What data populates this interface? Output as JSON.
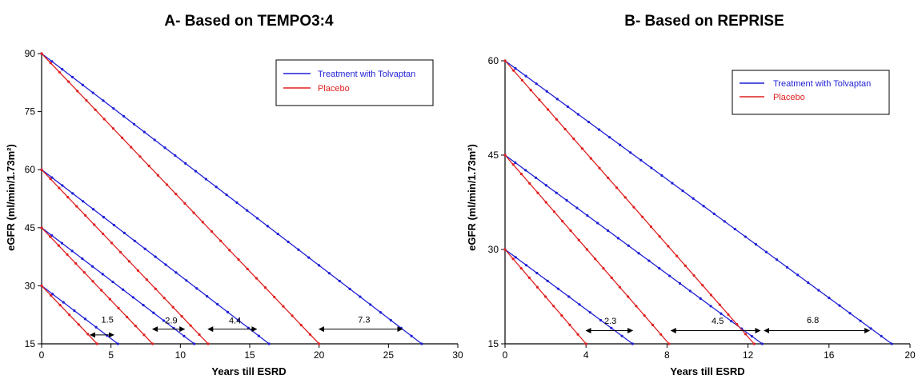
{
  "chart_data": [
    {
      "type": "line",
      "title": "A- Based on TEMPO3:4",
      "xlabel": "Years till ESRD",
      "ylabel": "eGFR (ml/min/1.73m²)",
      "xlim": [
        0,
        30
      ],
      "ylim": [
        15,
        90
      ],
      "x_ticks": [
        0,
        5,
        10,
        15,
        20,
        25,
        30
      ],
      "y_ticks": [
        15,
        30,
        45,
        60,
        75,
        90
      ],
      "grid": false,
      "legend_position": "top-right",
      "legend": [
        {
          "label": "Treatment with Tolvaptan",
          "color": "#1f1fd6"
        },
        {
          "label": "Placebo",
          "color": "#e02020"
        }
      ],
      "series": [
        {
          "group": "Treatment with Tolvaptan",
          "color": "#1f1fd6",
          "x": [
            0,
            27.4
          ],
          "y": [
            90,
            15
          ]
        },
        {
          "group": "Treatment with Tolvaptan",
          "color": "#1f1fd6",
          "x": [
            0,
            16.4
          ],
          "y": [
            60,
            15
          ]
        },
        {
          "group": "Treatment with Tolvaptan",
          "color": "#1f1fd6",
          "x": [
            0,
            11.0
          ],
          "y": [
            45,
            15
          ]
        },
        {
          "group": "Treatment with Tolvaptan",
          "color": "#1f1fd6",
          "x": [
            0,
            5.5
          ],
          "y": [
            30,
            15
          ]
        },
        {
          "group": "Placebo",
          "color": "#e02020",
          "x": [
            0,
            20.0
          ],
          "y": [
            90,
            15
          ]
        },
        {
          "group": "Placebo",
          "color": "#e02020",
          "x": [
            0,
            12.0
          ],
          "y": [
            60,
            15
          ]
        },
        {
          "group": "Placebo",
          "color": "#e02020",
          "x": [
            0,
            8.0
          ],
          "y": [
            45,
            15
          ]
        },
        {
          "group": "Placebo",
          "color": "#e02020",
          "x": [
            0,
            4.0
          ],
          "y": [
            30,
            15
          ]
        }
      ],
      "annotations": [
        {
          "text": "1.5",
          "x1": 3.5,
          "x2": 5.2,
          "y": 17.3,
          "text_x": 4.3,
          "text_y": 20.5
        },
        {
          "text": "2.9",
          "x1": 8.0,
          "x2": 10.3,
          "y": 18.8,
          "text_x": 8.9,
          "text_y": 20.3
        },
        {
          "text": "4.4",
          "x1": 12.0,
          "x2": 15.5,
          "y": 18.8,
          "text_x": 13.5,
          "text_y": 20.3
        },
        {
          "text": "7.3",
          "x1": 20.0,
          "x2": 26.0,
          "y": 18.8,
          "text_x": 22.8,
          "text_y": 20.5
        }
      ]
    },
    {
      "type": "line",
      "title": "B- Based on REPRISE",
      "xlabel": "Years till ESRD",
      "ylabel": "eGFR (ml/min/1.73m²)",
      "xlim": [
        0,
        20
      ],
      "ylim": [
        15,
        60
      ],
      "x_ticks": [
        0,
        4,
        8,
        12,
        16,
        20
      ],
      "y_ticks": [
        15,
        30,
        45,
        60
      ],
      "grid": false,
      "legend_position": "top-right",
      "legend": [
        {
          "label": "Treatment with Tolvaptan",
          "color": "#1f1fd6"
        },
        {
          "label": "Placebo",
          "color": "#e02020"
        }
      ],
      "series": [
        {
          "group": "Treatment with Tolvaptan",
          "color": "#1f1fd6",
          "x": [
            0,
            19.1
          ],
          "y": [
            60,
            15
          ]
        },
        {
          "group": "Treatment with Tolvaptan",
          "color": "#1f1fd6",
          "x": [
            0,
            12.7
          ],
          "y": [
            45,
            15
          ]
        },
        {
          "group": "Treatment with Tolvaptan",
          "color": "#1f1fd6",
          "x": [
            0,
            6.3
          ],
          "y": [
            30,
            15
          ]
        },
        {
          "group": "Placebo",
          "color": "#e02020",
          "x": [
            0,
            12.3
          ],
          "y": [
            60,
            15
          ]
        },
        {
          "group": "Placebo",
          "color": "#e02020",
          "x": [
            0,
            8.1
          ],
          "y": [
            45,
            15
          ]
        },
        {
          "group": "Placebo",
          "color": "#e02020",
          "x": [
            0,
            4.0
          ],
          "y": [
            30,
            15
          ]
        }
      ],
      "annotations": [
        {
          "text": "2.3",
          "x1": 4.0,
          "x2": 6.3,
          "y": 17.1,
          "text_x": 4.9,
          "text_y": 18.2
        },
        {
          "text": "4.5",
          "x1": 8.2,
          "x2": 12.6,
          "y": 17.1,
          "text_x": 10.2,
          "text_y": 18.2
        },
        {
          "text": "6.8",
          "x1": 12.8,
          "x2": 18.0,
          "y": 17.1,
          "text_x": 14.9,
          "text_y": 18.3
        }
      ]
    }
  ]
}
